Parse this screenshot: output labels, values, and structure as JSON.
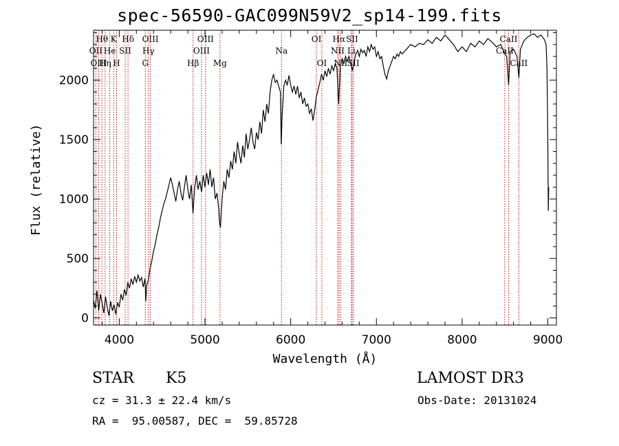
{
  "title": "spec-56590-GAC099N59V2_sp14-199.fits",
  "info": {
    "class": "STAR",
    "subclass": "K5",
    "survey": "LAMOST DR3",
    "cz": "cz = 31.3 ± 22.4 km/s",
    "obs_date": "Obs-Date: 20131024",
    "radec": "RA =  95.00587, DEC =  59.85728"
  },
  "chart_data": {
    "type": "line",
    "title": "spec-56590-GAC099N59V2_sp14-199.fits",
    "xlabel": "Wavelength (Å)",
    "ylabel": "Flux (relative)",
    "xlim": [
      3700,
      9100
    ],
    "ylim": [
      -60,
      2420
    ],
    "x_ticks": [
      4000,
      5000,
      6000,
      7000,
      8000,
      9000
    ],
    "y_ticks": [
      0,
      500,
      1000,
      1500,
      2000
    ],
    "line_color": "#000000",
    "marker_color": "#cc0000",
    "series": [
      {
        "name": "flux",
        "points": [
          [
            3700,
            150
          ],
          [
            3720,
            80
          ],
          [
            3740,
            230
          ],
          [
            3760,
            60
          ],
          [
            3780,
            200
          ],
          [
            3800,
            120
          ],
          [
            3820,
            40
          ],
          [
            3840,
            180
          ],
          [
            3860,
            90
          ],
          [
            3880,
            20
          ],
          [
            3900,
            140
          ],
          [
            3920,
            60
          ],
          [
            3940,
            110
          ],
          [
            3960,
            30
          ],
          [
            3980,
            130
          ],
          [
            4000,
            90
          ],
          [
            4020,
            200
          ],
          [
            4040,
            150
          ],
          [
            4060,
            240
          ],
          [
            4080,
            190
          ],
          [
            4100,
            300
          ],
          [
            4120,
            250
          ],
          [
            4140,
            330
          ],
          [
            4160,
            280
          ],
          [
            4180,
            350
          ],
          [
            4200,
            300
          ],
          [
            4220,
            360
          ],
          [
            4240,
            310
          ],
          [
            4260,
            340
          ],
          [
            4280,
            260
          ],
          [
            4300,
            330
          ],
          [
            4310,
            140
          ],
          [
            4320,
            280
          ],
          [
            4340,
            320
          ],
          [
            4360,
            420
          ],
          [
            4380,
            480
          ],
          [
            4400,
            560
          ],
          [
            4420,
            620
          ],
          [
            4440,
            700
          ],
          [
            4460,
            760
          ],
          [
            4480,
            840
          ],
          [
            4500,
            900
          ],
          [
            4520,
            960
          ],
          [
            4540,
            1000
          ],
          [
            4560,
            1060
          ],
          [
            4580,
            1120
          ],
          [
            4600,
            1180
          ],
          [
            4620,
            1120
          ],
          [
            4640,
            1050
          ],
          [
            4660,
            980
          ],
          [
            4680,
            1080
          ],
          [
            4700,
            1150
          ],
          [
            4720,
            1050
          ],
          [
            4740,
            990
          ],
          [
            4760,
            1100
          ],
          [
            4780,
            1200
          ],
          [
            4800,
            1080
          ],
          [
            4820,
            1000
          ],
          [
            4840,
            1120
          ],
          [
            4860,
            880
          ],
          [
            4880,
            1100
          ],
          [
            4900,
            1200
          ],
          [
            4920,
            1080
          ],
          [
            4940,
            1150
          ],
          [
            4960,
            1060
          ],
          [
            4980,
            1200
          ],
          [
            5000,
            1100
          ],
          [
            5020,
            1220
          ],
          [
            5040,
            1120
          ],
          [
            5060,
            1250
          ],
          [
            5080,
            1100
          ],
          [
            5100,
            1180
          ],
          [
            5120,
            1000
          ],
          [
            5140,
            1050
          ],
          [
            5160,
            920
          ],
          [
            5170,
            800
          ],
          [
            5180,
            760
          ],
          [
            5190,
            880
          ],
          [
            5200,
            1000
          ],
          [
            5220,
            1150
          ],
          [
            5240,
            1080
          ],
          [
            5260,
            1250
          ],
          [
            5280,
            1180
          ],
          [
            5300,
            1320
          ],
          [
            5320,
            1250
          ],
          [
            5340,
            1400
          ],
          [
            5360,
            1300
          ],
          [
            5380,
            1480
          ],
          [
            5400,
            1380
          ],
          [
            5420,
            1300
          ],
          [
            5440,
            1450
          ],
          [
            5460,
            1350
          ],
          [
            5480,
            1550
          ],
          [
            5500,
            1420
          ],
          [
            5520,
            1500
          ],
          [
            5540,
            1600
          ],
          [
            5560,
            1480
          ],
          [
            5580,
            1420
          ],
          [
            5600,
            1560
          ],
          [
            5620,
            1500
          ],
          [
            5640,
            1650
          ],
          [
            5660,
            1550
          ],
          [
            5680,
            1750
          ],
          [
            5700,
            1650
          ],
          [
            5720,
            1800
          ],
          [
            5740,
            1720
          ],
          [
            5760,
            1900
          ],
          [
            5780,
            2000
          ],
          [
            5800,
            2050
          ],
          [
            5820,
            1980
          ],
          [
            5840,
            2000
          ],
          [
            5860,
            1950
          ],
          [
            5880,
            1900
          ],
          [
            5890,
            1460
          ],
          [
            5900,
            1700
          ],
          [
            5920,
            1950
          ],
          [
            5940,
            2000
          ],
          [
            5960,
            1960
          ],
          [
            5980,
            2040
          ],
          [
            6000,
            1960
          ],
          [
            6020,
            1900
          ],
          [
            6040,
            1950
          ],
          [
            6060,
            1880
          ],
          [
            6080,
            1950
          ],
          [
            6100,
            1850
          ],
          [
            6120,
            1900
          ],
          [
            6140,
            1800
          ],
          [
            6160,
            1850
          ],
          [
            6180,
            1780
          ],
          [
            6200,
            1800
          ],
          [
            6220,
            1720
          ],
          [
            6240,
            1760
          ],
          [
            6260,
            1660
          ],
          [
            6280,
            1750
          ],
          [
            6300,
            1860
          ],
          [
            6320,
            1920
          ],
          [
            6340,
            1980
          ],
          [
            6360,
            2050
          ],
          [
            6380,
            2000
          ],
          [
            6400,
            2080
          ],
          [
            6420,
            2030
          ],
          [
            6440,
            2100
          ],
          [
            6460,
            2050
          ],
          [
            6480,
            2120
          ],
          [
            6500,
            2080
          ],
          [
            6520,
            2140
          ],
          [
            6540,
            2100
          ],
          [
            6560,
            1800
          ],
          [
            6570,
            1960
          ],
          [
            6580,
            2120
          ],
          [
            6600,
            2180
          ],
          [
            6620,
            2140
          ],
          [
            6640,
            2200
          ],
          [
            6660,
            2160
          ],
          [
            6680,
            2200
          ],
          [
            6700,
            2140
          ],
          [
            6720,
            2080
          ],
          [
            6740,
            2160
          ],
          [
            6760,
            2220
          ],
          [
            6780,
            2250
          ],
          [
            6800,
            2200
          ],
          [
            6820,
            2260
          ],
          [
            6840,
            2230
          ],
          [
            6860,
            2250
          ],
          [
            6880,
            2200
          ],
          [
            6900,
            2280
          ],
          [
            6920,
            2240
          ],
          [
            6940,
            2300
          ],
          [
            6960,
            2260
          ],
          [
            6980,
            2280
          ],
          [
            7000,
            2200
          ],
          [
            7020,
            2240
          ],
          [
            7040,
            2180
          ],
          [
            7060,
            2200
          ],
          [
            7080,
            2120
          ],
          [
            7100,
            2050
          ],
          [
            7120,
            2010
          ],
          [
            7140,
            2080
          ],
          [
            7160,
            2120
          ],
          [
            7180,
            2160
          ],
          [
            7200,
            2200
          ],
          [
            7220,
            2180
          ],
          [
            7240,
            2220
          ],
          [
            7260,
            2200
          ],
          [
            7280,
            2240
          ],
          [
            7300,
            2220
          ],
          [
            7350,
            2260
          ],
          [
            7400,
            2300
          ],
          [
            7450,
            2280
          ],
          [
            7500,
            2310
          ],
          [
            7550,
            2300
          ],
          [
            7600,
            2340
          ],
          [
            7650,
            2310
          ],
          [
            7700,
            2360
          ],
          [
            7750,
            2330
          ],
          [
            7800,
            2380
          ],
          [
            7850,
            2340
          ],
          [
            7900,
            2300
          ],
          [
            7950,
            2240
          ],
          [
            8000,
            2280
          ],
          [
            8050,
            2240
          ],
          [
            8100,
            2310
          ],
          [
            8150,
            2280
          ],
          [
            8200,
            2330
          ],
          [
            8250,
            2300
          ],
          [
            8300,
            2350
          ],
          [
            8350,
            2320
          ],
          [
            8400,
            2280
          ],
          [
            8450,
            2300
          ],
          [
            8500,
            2220
          ],
          [
            8520,
            2200
          ],
          [
            8542,
            1960
          ],
          [
            8560,
            2240
          ],
          [
            8600,
            2260
          ],
          [
            8640,
            2200
          ],
          [
            8662,
            2020
          ],
          [
            8680,
            2260
          ],
          [
            8720,
            2330
          ],
          [
            8760,
            2360
          ],
          [
            8800,
            2380
          ],
          [
            8840,
            2390
          ],
          [
            8880,
            2360
          ],
          [
            8920,
            2380
          ],
          [
            8960,
            2340
          ],
          [
            8980,
            2300
          ],
          [
            8990,
            2100
          ],
          [
            9000,
            1500
          ],
          [
            9005,
            900
          ],
          [
            9010,
            1100
          ]
        ]
      }
    ],
    "lines": [
      {
        "label": "Hθ",
        "wl": 3798,
        "row": 1
      },
      {
        "label": "OII",
        "wl": 3727,
        "row": 2
      },
      {
        "label": "OIII",
        "wl": 3760,
        "row": 3
      },
      {
        "label": "He",
        "wl": 3889,
        "row": 2
      },
      {
        "label": "Hη",
        "wl": 3835,
        "row": 3
      },
      {
        "label": "K",
        "wl": 3934,
        "row": 1
      },
      {
        "label": "SII",
        "wl": 4069,
        "row": 2
      },
      {
        "label": "H",
        "wl": 3969,
        "row": 3
      },
      {
        "label": "Hδ",
        "wl": 4102,
        "row": 1
      },
      {
        "label": "OIII",
        "wl": 4363,
        "row": 1
      },
      {
        "label": "Hγ",
        "wl": 4340,
        "row": 2
      },
      {
        "label": "G",
        "wl": 4304,
        "row": 3
      },
      {
        "label": "Hβ",
        "wl": 4861,
        "row": 3
      },
      {
        "label": "OIII",
        "wl": 5007,
        "row": 1
      },
      {
        "label": "OIII",
        "wl": 4959,
        "row": 2
      },
      {
        "label": "Mg",
        "wl": 5175,
        "row": 3
      },
      {
        "label": "Na",
        "wl": 5893,
        "row": 2
      },
      {
        "label": "OI",
        "wl": 6300,
        "row": 1
      },
      {
        "label": "OI",
        "wl": 6364,
        "row": 3
      },
      {
        "label": "Hα",
        "wl": 6563,
        "row": 1
      },
      {
        "label": "NII",
        "wl": 6548,
        "row": 2
      },
      {
        "label": "NII",
        "wl": 6583,
        "row": 3
      },
      {
        "label": "Li",
        "wl": 6708,
        "row": 2
      },
      {
        "label": "SII",
        "wl": 6716,
        "row": 1
      },
      {
        "label": "SII",
        "wl": 6731,
        "row": 3
      },
      {
        "label": "CaII",
        "wl": 8542,
        "row": 1
      },
      {
        "label": "CaII",
        "wl": 8498,
        "row": 2
      },
      {
        "label": "CaII",
        "wl": 8662,
        "row": 3
      }
    ]
  }
}
